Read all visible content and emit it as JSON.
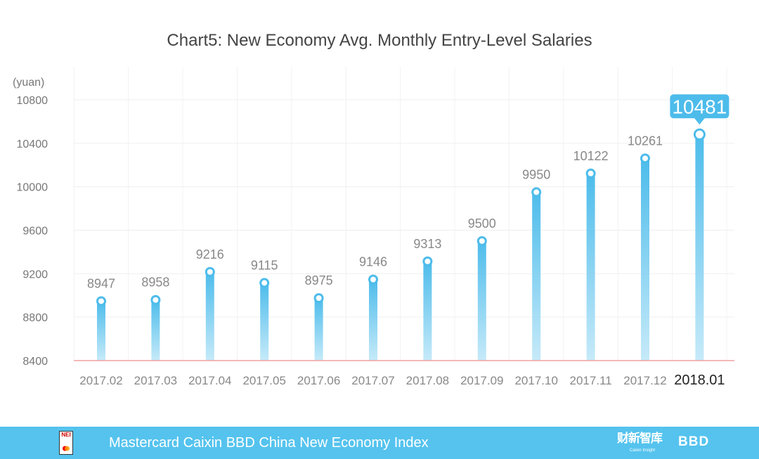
{
  "chart_data": {
    "type": "bar",
    "title": "Chart5:  New Economy Avg. Monthly Entry-Level Salaries",
    "ylabel": "(yuan)",
    "xlabel": "",
    "ylim": [
      8400,
      10800
    ],
    "yticks": [
      8400,
      8800,
      9200,
      9600,
      10000,
      10400,
      10800
    ],
    "grid": true,
    "categories": [
      "2017.02",
      "2017.03",
      "2017.04",
      "2017.05",
      "2017.06",
      "2017.07",
      "2017.08",
      "2017.09",
      "2017.10",
      "2017.11",
      "2017.12",
      "2018.01"
    ],
    "values": [
      8947,
      8958,
      9216,
      9115,
      8975,
      9146,
      9313,
      9500,
      9950,
      10122,
      10261,
      10481
    ],
    "highlight": "2018.01",
    "colors": {
      "bar_top": "#4dbceb",
      "bar_bottom": "#c6eaf9",
      "baseline": "#f2a0a0",
      "callout": "#4dbceb"
    }
  },
  "footer": {
    "text": "Mastercard Caixin BBD China New Economy Index",
    "nei_logo": "NEI",
    "caixin_logo": "财新智库",
    "caixin_sub": "Caixin Insight",
    "bbd_logo": "BBD",
    "background": "#55c3ee"
  }
}
